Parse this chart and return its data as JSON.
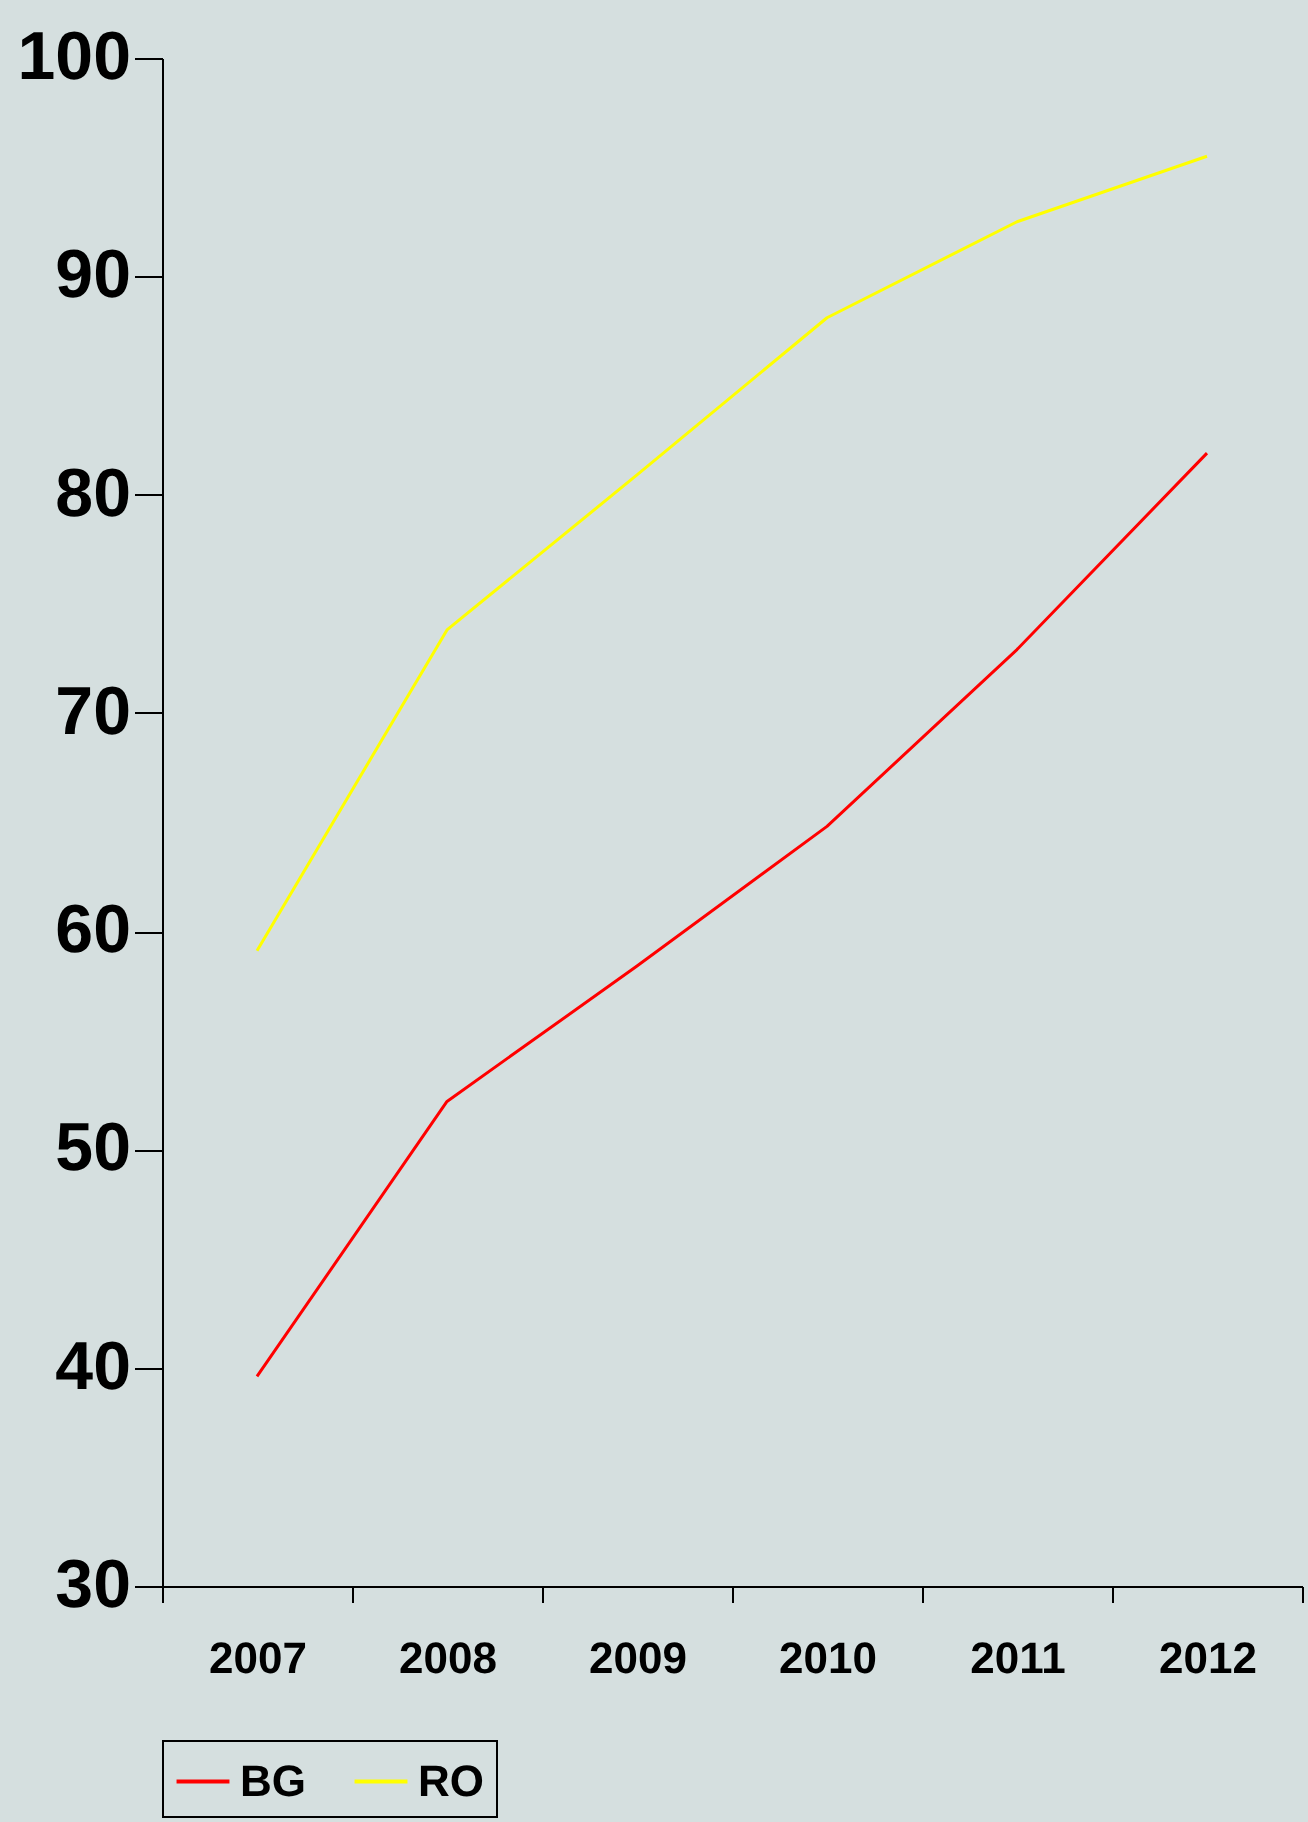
{
  "chart_data": {
    "type": "line",
    "categories": [
      "2007",
      "2008",
      "2009",
      "2010",
      "2011",
      "2012"
    ],
    "series": [
      {
        "name": "BG",
        "color": "#ff0000",
        "values": [
          39.6,
          52.2,
          58.4,
          64.8,
          72.9,
          81.9
        ]
      },
      {
        "name": "RO",
        "color": "#ffff00",
        "values": [
          59.1,
          73.8,
          80.9,
          88.1,
          92.5,
          95.5
        ]
      }
    ],
    "ylim": [
      30,
      100
    ],
    "yticks": [
      30,
      40,
      50,
      60,
      70,
      80,
      90,
      100
    ],
    "grid": false,
    "legend": "bottom",
    "marker": "none",
    "line_style": "solid"
  }
}
